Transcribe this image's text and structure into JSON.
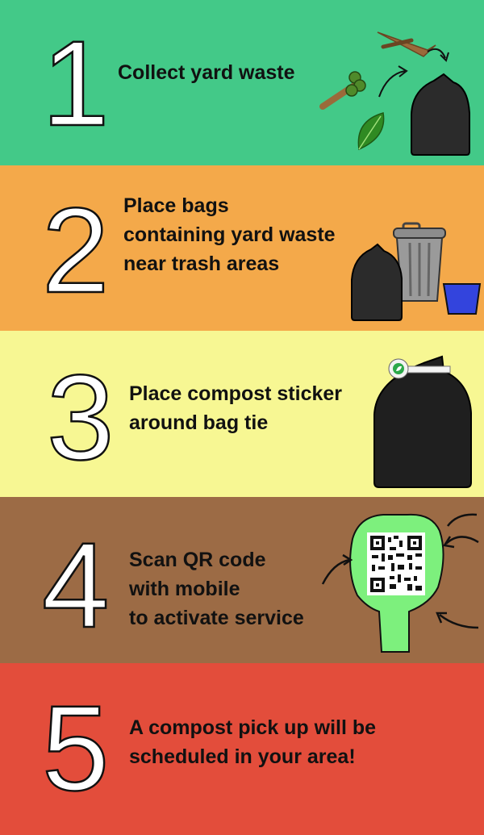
{
  "colors": {
    "step1": "#43c988",
    "step2": "#f4a94a",
    "step3": "#f7f793",
    "step4": "#9c6b45",
    "step5": "#e34d3b",
    "bag": "#2b2b2b",
    "tag": "#7df07d"
  },
  "steps": [
    {
      "number": "1",
      "text": "Collect yard waste"
    },
    {
      "number": "2",
      "text": "Place bags\ncontaining yard waste\nnear trash areas"
    },
    {
      "number": "3",
      "text": "Place compost sticker\naround bag tie"
    },
    {
      "number": "4",
      "text": "Scan QR code\nwith mobile\nto activate service"
    },
    {
      "number": "5",
      "text": "A compost pick up will be\nscheduled in your area!"
    }
  ],
  "icons": [
    "branch-icon",
    "leaf-icon",
    "trash-bag-icon",
    "trash-can-icon",
    "bucket-icon",
    "compost-sticker-icon",
    "qr-code-icon",
    "arrow-icon"
  ]
}
